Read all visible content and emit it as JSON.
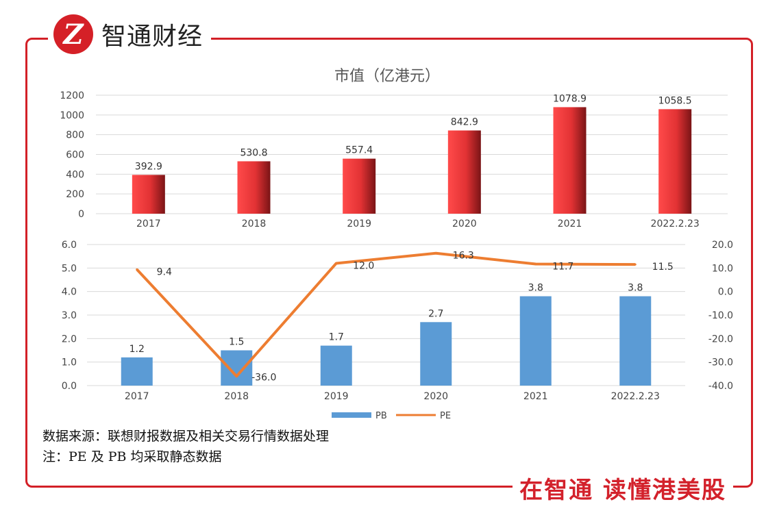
{
  "brand": {
    "logo_glyph": "Z",
    "name": "智通财经"
  },
  "slogan": "在智通  读懂港美股",
  "notes": {
    "source": "数据来源：联想财报数据及相关交易行情数据处理",
    "note": "注：PE 及 PB 均采取静态数据"
  },
  "colors": {
    "frame": "#d32027",
    "market_cap_bar": "#e8393b",
    "pb_bar": "#5b9bd5",
    "pe_line": "#ed7d31"
  },
  "chart_data": [
    {
      "type": "bar",
      "title": "市值（亿港元）",
      "categories": [
        "2017",
        "2018",
        "2019",
        "2020",
        "2021",
        "2022.2.23"
      ],
      "values": [
        392.9,
        530.8,
        557.4,
        842.9,
        1078.9,
        1058.5
      ],
      "value_labels": [
        "392.9",
        "530.8",
        "557.4",
        "842.9",
        "1078.9",
        "1058.5"
      ],
      "ylim": [
        0,
        1200
      ],
      "yticks": [
        "0",
        "200",
        "400",
        "600",
        "800",
        "1000",
        "1200"
      ],
      "grid": true
    },
    {
      "type": "bar+line",
      "categories": [
        "2017",
        "2018",
        "2019",
        "2020",
        "2021",
        "2022.2.23"
      ],
      "series": [
        {
          "name": "PB",
          "type": "bar",
          "axis": "left",
          "values": [
            1.2,
            1.5,
            1.7,
            2.7,
            3.8,
            3.8
          ],
          "value_labels": [
            "1.2",
            "1.5",
            "1.7",
            "2.7",
            "3.8",
            "3.8"
          ]
        },
        {
          "name": "PE",
          "type": "line",
          "axis": "right",
          "values": [
            9.4,
            -36.0,
            12.0,
            16.3,
            11.7,
            11.5
          ],
          "value_labels": [
            "9.4",
            "-36.0",
            "12.0",
            "16.3",
            "11.7",
            "11.5"
          ]
        }
      ],
      "ylim_left": [
        0,
        6
      ],
      "yticks_left": [
        "0.0",
        "1.0",
        "2.0",
        "3.0",
        "4.0",
        "5.0",
        "6.0"
      ],
      "ylim_right": [
        -40,
        20
      ],
      "yticks_right": [
        "-40.0",
        "-30.0",
        "-20.0",
        "-10.0",
        "0.0",
        "10.0",
        "20.0"
      ],
      "legend_position": "bottom",
      "grid": true
    }
  ]
}
